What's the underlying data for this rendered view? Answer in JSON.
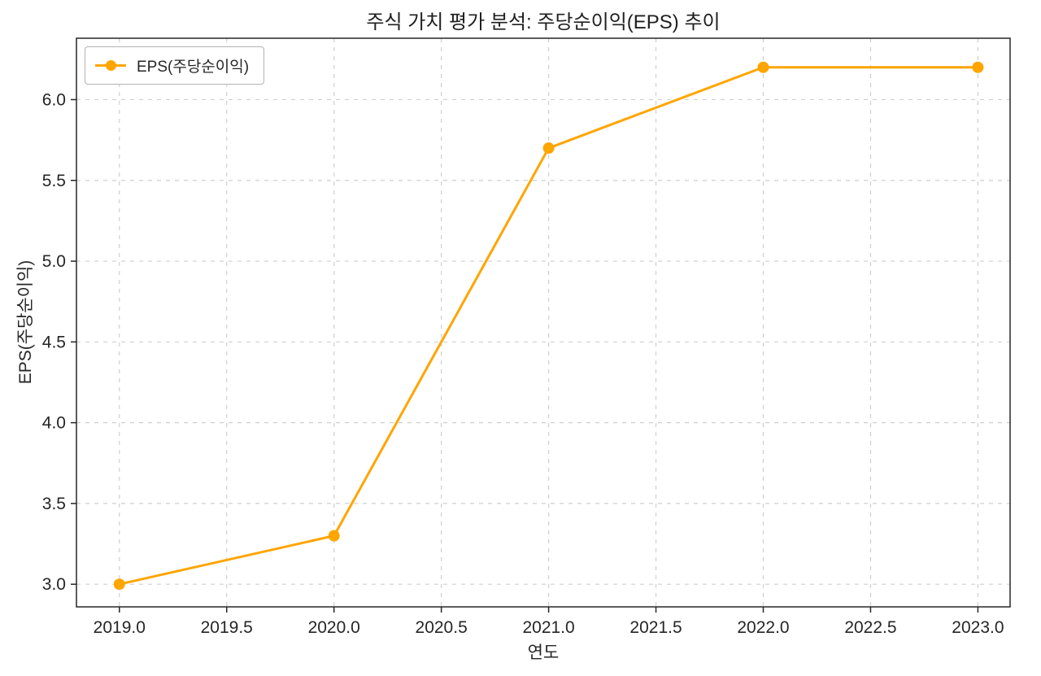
{
  "figure": {
    "background": "#ffffff"
  },
  "chart_data": {
    "type": "line",
    "title": "주식 가치 평가 분석: 주당순이익(EPS) 추이",
    "xlabel": "연도",
    "ylabel": "EPS(주당순이익)",
    "x": [
      2019,
      2020,
      2021,
      2022,
      2023
    ],
    "series": [
      {
        "name": "EPS(주당순이익)",
        "values": [
          3.0,
          3.3,
          5.7,
          6.2,
          6.2
        ],
        "color": "#FFA500",
        "marker": "circle"
      }
    ],
    "xlim": [
      2018.8,
      2023.15
    ],
    "ylim": [
      2.86,
      6.38
    ],
    "x_tick_labels": [
      "2019.0",
      "2019.5",
      "2020.0",
      "2020.5",
      "2021.0",
      "2021.5",
      "2022.0",
      "2022.5",
      "2023.0"
    ],
    "y_tick_labels": [
      "3.0",
      "3.5",
      "4.0",
      "4.5",
      "5.0",
      "5.5",
      "6.0"
    ],
    "grid": true,
    "grid_style": "dashed",
    "grid_color": "#cfcfcf",
    "spine_color": "#262626",
    "tick_text_color": "#262626",
    "legend_position": "upper left"
  }
}
